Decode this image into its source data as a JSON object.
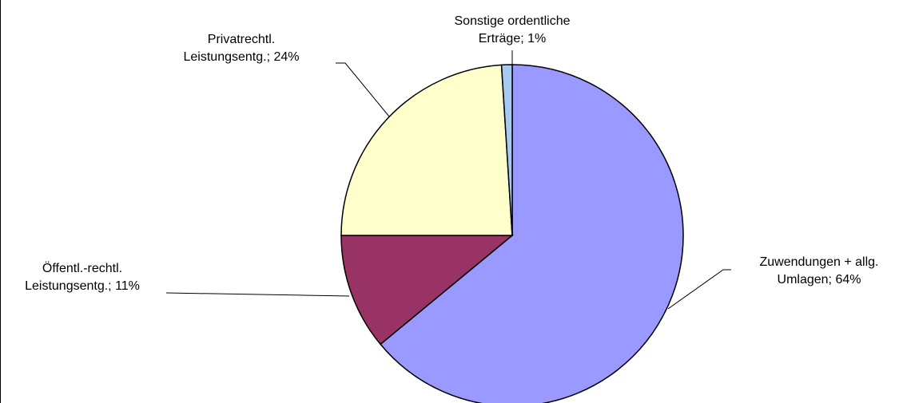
{
  "chart_data": {
    "type": "pie",
    "categories": [
      "Zuwendungen + allg. Umlagen",
      "Öffentl.-rechtl. Leistungsentg.",
      "Privatrechtl. Leistungsentg.",
      "Sonstige ordentliche Erträge"
    ],
    "labels": [
      [
        "Zuwendungen + allg.",
        "Umlagen; 64%"
      ],
      [
        "Öffentl.-rechtl.",
        "Leistungsentg.; 11%"
      ],
      [
        "Privatrechtl.",
        "Leistungsentg.; 24%"
      ],
      [
        "Sonstige ordentliche",
        "Erträge; 1%"
      ]
    ],
    "values": [
      64,
      11,
      24,
      1
    ],
    "colors": [
      "#9999ff",
      "#993366",
      "#ffffcc",
      "#a6caf0"
    ]
  }
}
